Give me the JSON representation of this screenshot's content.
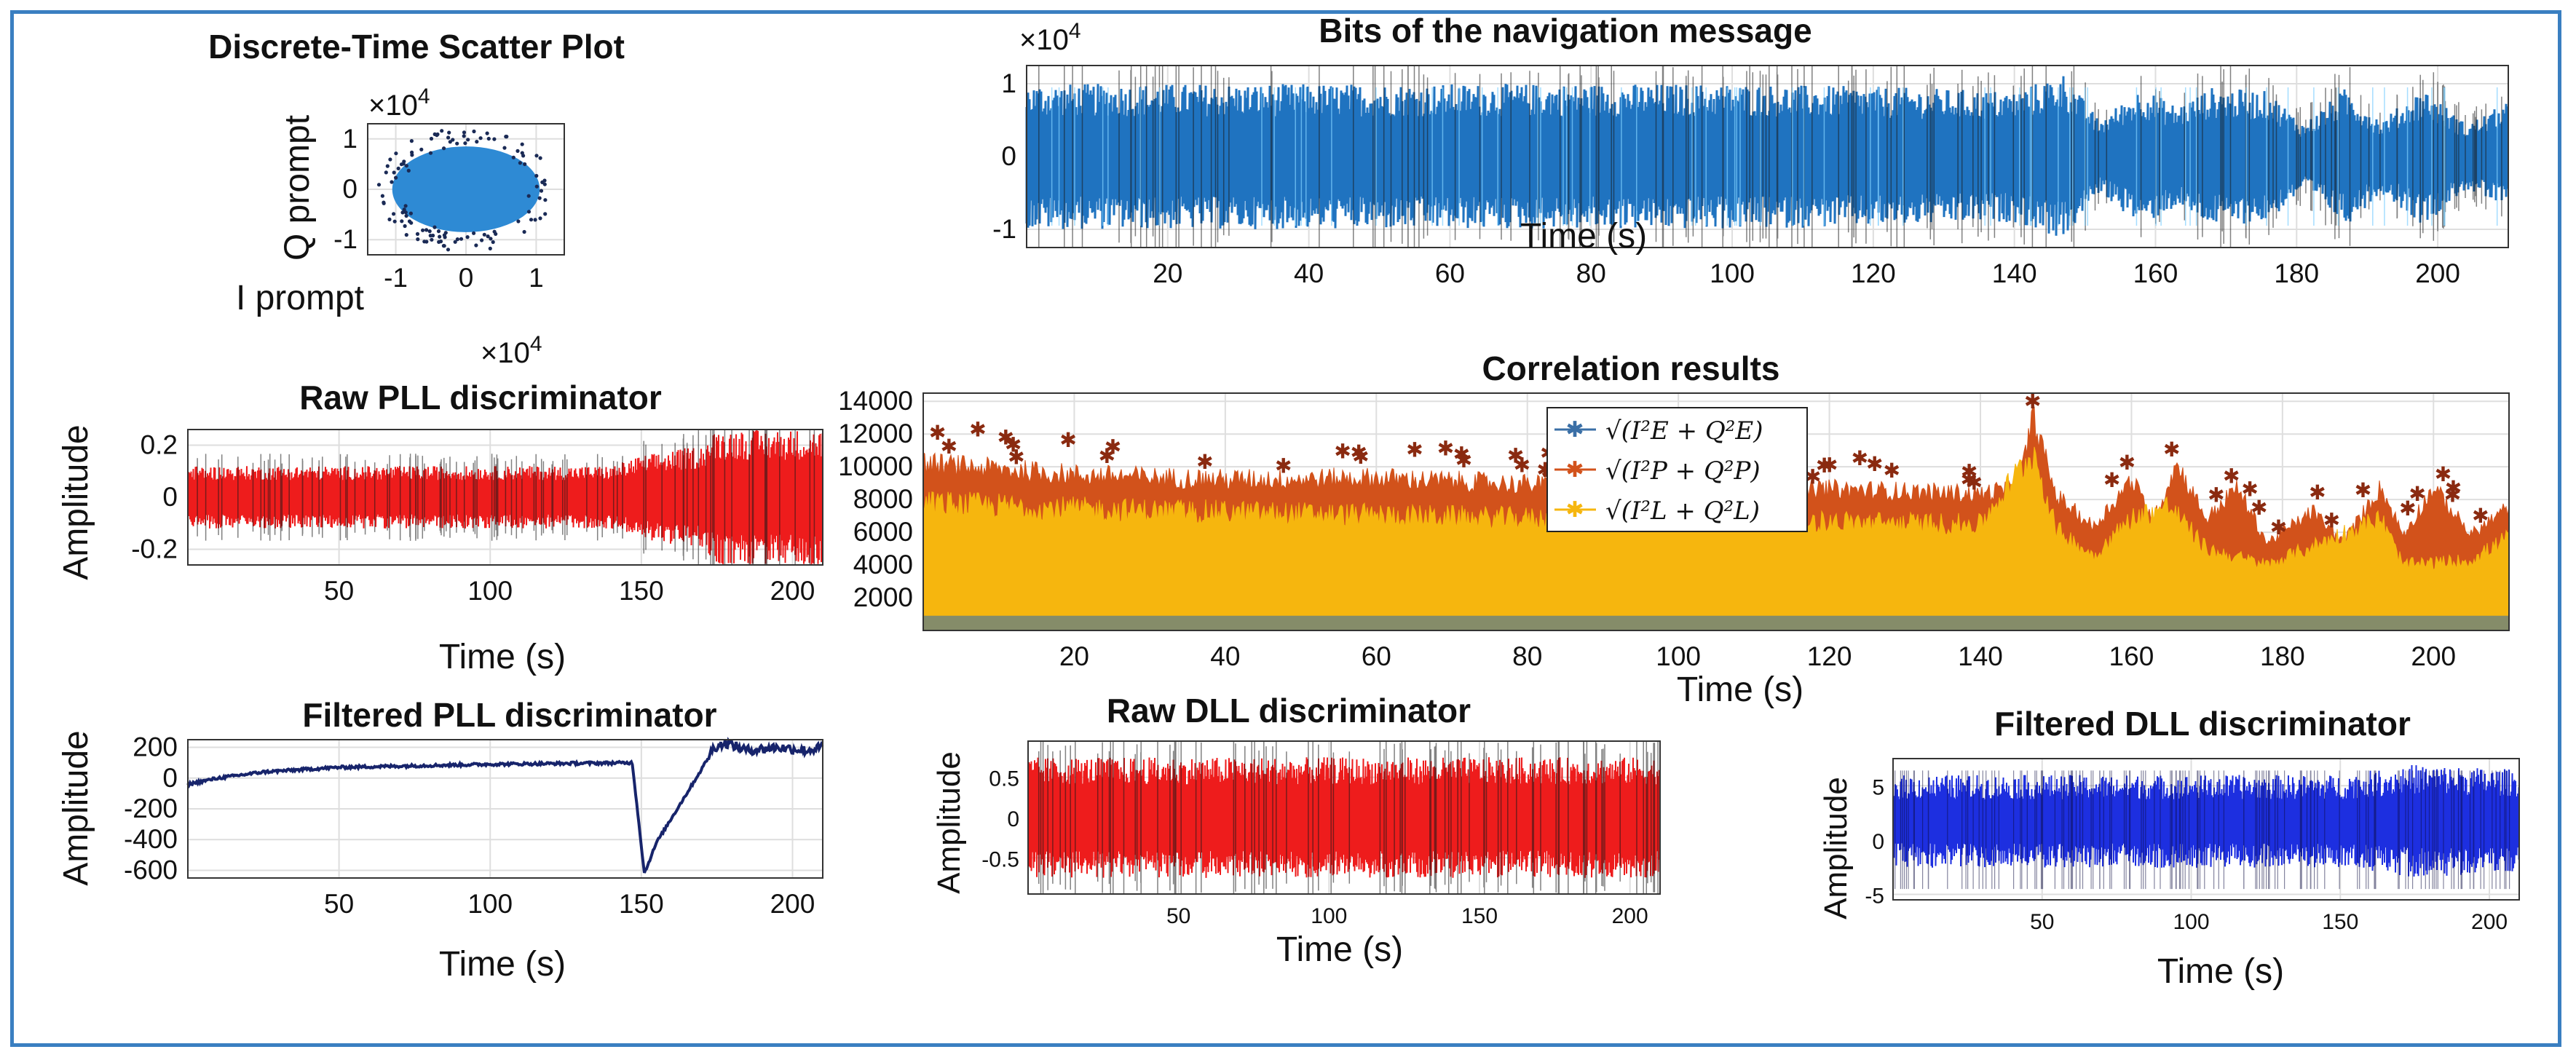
{
  "chart_data": [
    {
      "id": "scatter",
      "type": "scatter",
      "title": "Discrete-Time Scatter Plot",
      "xlabel": "I prompt",
      "ylabel": "Q prompt",
      "exponent": "×10",
      "exponent_power": "4",
      "xlim": [
        -1.4,
        1.4
      ],
      "ylim": [
        -1.3,
        1.3
      ],
      "xticks": [
        -1,
        0,
        1
      ],
      "yticks": [
        1,
        0,
        -1
      ],
      "cloud": {
        "rx": 1.05,
        "ry": 0.85,
        "color": "#2e8ad4",
        "outlier_color": "#1a2a55"
      }
    },
    {
      "id": "bits",
      "type": "line",
      "title": "Bits of the navigation message",
      "xlabel": "Time (s)",
      "ylabel": "",
      "exponent": "×10",
      "exponent_power": "4",
      "xlim": [
        0,
        210
      ],
      "ylim": [
        -1.25,
        1.25
      ],
      "xticks": [
        20,
        40,
        60,
        80,
        100,
        120,
        140,
        160,
        180,
        200
      ],
      "yticks": [
        1,
        0,
        -1
      ],
      "series": [
        {
          "name": "bits",
          "color": "#1f73c0",
          "envelope": [
            [
              0,
              1.0
            ],
            [
              20,
              1.0
            ],
            [
              40,
              1.0
            ],
            [
              60,
              1.0
            ],
            [
              80,
              1.0
            ],
            [
              100,
              1.0
            ],
            [
              120,
              0.96
            ],
            [
              140,
              0.9
            ],
            [
              147,
              1.15
            ],
            [
              152,
              0.5
            ],
            [
              158,
              0.95
            ],
            [
              163,
              0.7
            ],
            [
              168,
              0.95
            ],
            [
              176,
              0.9
            ],
            [
              181,
              0.45
            ],
            [
              187,
              0.95
            ],
            [
              192,
              0.5
            ],
            [
              198,
              0.95
            ],
            [
              204,
              0.45
            ],
            [
              210,
              0.75
            ]
          ]
        }
      ]
    },
    {
      "id": "corr",
      "type": "line",
      "title": "Correlation results",
      "xlabel": "Time (s)",
      "ylabel": "",
      "xlim": [
        0,
        210
      ],
      "ylim": [
        0,
        14500
      ],
      "xticks": [
        20,
        40,
        60,
        80,
        100,
        120,
        140,
        160,
        180,
        200
      ],
      "yticks": [
        14000,
        12000,
        10000,
        8000,
        6000,
        4000,
        2000
      ],
      "series": [
        {
          "name": "√(I²E + Q²E)",
          "color": "#3a6fa6",
          "values": [
            [
              0,
              1000
            ],
            [
              210,
              1000
            ]
          ]
        },
        {
          "name": "√(I²P + Q²P)",
          "color": "#d2521b",
          "values": [
            [
              0,
              10500
            ],
            [
              20,
              9800
            ],
            [
              40,
              9500
            ],
            [
              60,
              9600
            ],
            [
              80,
              9200
            ],
            [
              100,
              8800
            ],
            [
              120,
              8900
            ],
            [
              140,
              8600
            ],
            [
              145,
              9000
            ],
            [
              147,
              13500
            ],
            [
              150,
              8500
            ],
            [
              155,
              6500
            ],
            [
              160,
              9500
            ],
            [
              163,
              7000
            ],
            [
              166,
              10500
            ],
            [
              170,
              7000
            ],
            [
              174,
              9000
            ],
            [
              178,
              5500
            ],
            [
              184,
              7500
            ],
            [
              188,
              5500
            ],
            [
              193,
              9000
            ],
            [
              196,
              6000
            ],
            [
              200,
              9000
            ],
            [
              205,
              6000
            ],
            [
              210,
              7800
            ]
          ]
        },
        {
          "name": "√(I²L + Q²L)",
          "color": "#f6b60e",
          "values": [
            [
              0,
              8200
            ],
            [
              20,
              7800
            ],
            [
              40,
              7600
            ],
            [
              60,
              7400
            ],
            [
              80,
              7200
            ],
            [
              100,
              7000
            ],
            [
              120,
              7000
            ],
            [
              140,
              6800
            ],
            [
              147,
              11500
            ],
            [
              150,
              6500
            ],
            [
              155,
              4800
            ],
            [
              160,
              7200
            ],
            [
              165,
              8000
            ],
            [
              170,
              5200
            ],
            [
              178,
              4200
            ],
            [
              185,
              5600
            ],
            [
              193,
              7200
            ],
            [
              196,
              4200
            ],
            [
              205,
              4500
            ],
            [
              210,
              6000
            ]
          ]
        }
      ],
      "legend_position": "upper-center"
    },
    {
      "id": "rawpll",
      "type": "line",
      "title": "Raw PLL discriminator",
      "xlabel": "Time (s)",
      "ylabel": "Amplitude",
      "exponent": "×10",
      "exponent_power": "4",
      "xlim": [
        0,
        210
      ],
      "ylim": [
        -0.26,
        0.26
      ],
      "xticks": [
        50,
        100,
        150,
        200
      ],
      "yticks": [
        0.2,
        0,
        -0.2
      ],
      "series": [
        {
          "name": "raw PLL",
          "color": "#ee1c1c",
          "envelope": [
            [
              0,
              0.12
            ],
            [
              140,
              0.12
            ],
            [
              150,
              0.16
            ],
            [
              170,
              0.2
            ],
            [
              175,
              0.26
            ],
            [
              210,
              0.26
            ]
          ]
        }
      ]
    },
    {
      "id": "filtpll",
      "type": "line",
      "title": "Filtered PLL discriminator",
      "xlabel": "Time (s)",
      "ylabel": "Amplitude",
      "xlim": [
        0,
        210
      ],
      "ylim": [
        -650,
        250
      ],
      "xticks": [
        50,
        100,
        150,
        200
      ],
      "yticks": [
        200,
        0,
        -200,
        -400,
        -600
      ],
      "series": [
        {
          "name": "filtered PLL",
          "color": "#17246b",
          "values": [
            [
              0,
              -40
            ],
            [
              10,
              0
            ],
            [
              25,
              40
            ],
            [
              50,
              70
            ],
            [
              100,
              90
            ],
            [
              147,
              100
            ],
            [
              151,
              -620
            ],
            [
              155,
              -420
            ],
            [
              160,
              -260
            ],
            [
              165,
              -100
            ],
            [
              170,
              60
            ],
            [
              174,
              200
            ],
            [
              178,
              230
            ],
            [
              185,
              180
            ],
            [
              195,
              200
            ],
            [
              205,
              180
            ],
            [
              210,
              200
            ]
          ]
        }
      ]
    },
    {
      "id": "rawdll",
      "type": "line",
      "title": "Raw DLL discriminator",
      "xlabel": "Time (s)",
      "ylabel": "Amplitude",
      "xlim": [
        0,
        210
      ],
      "ylim": [
        -0.95,
        0.95
      ],
      "xticks": [
        50,
        100,
        150,
        200
      ],
      "yticks": [
        0.5,
        0,
        -0.5
      ],
      "series": [
        {
          "name": "raw DLL",
          "color": "#ee1c1c",
          "envelope": [
            [
              0,
              0.75
            ],
            [
              210,
              0.75
            ]
          ]
        }
      ]
    },
    {
      "id": "filtdll",
      "type": "line",
      "title": "Filtered DLL discriminator",
      "xlabel": "Time (s)",
      "ylabel": "Amplitude",
      "xlim": [
        0,
        210
      ],
      "ylim": [
        -5.5,
        7.5
      ],
      "xticks": [
        50,
        100,
        150,
        200
      ],
      "yticks": [
        5,
        0,
        -5
      ],
      "series": [
        {
          "name": "filtered DLL",
          "color": "#1d2fe0",
          "envelope": [
            [
              0,
              4.5
            ],
            [
              150,
              4.5
            ],
            [
              175,
              5.5
            ],
            [
              210,
              5.0
            ]
          ]
        }
      ]
    }
  ]
}
